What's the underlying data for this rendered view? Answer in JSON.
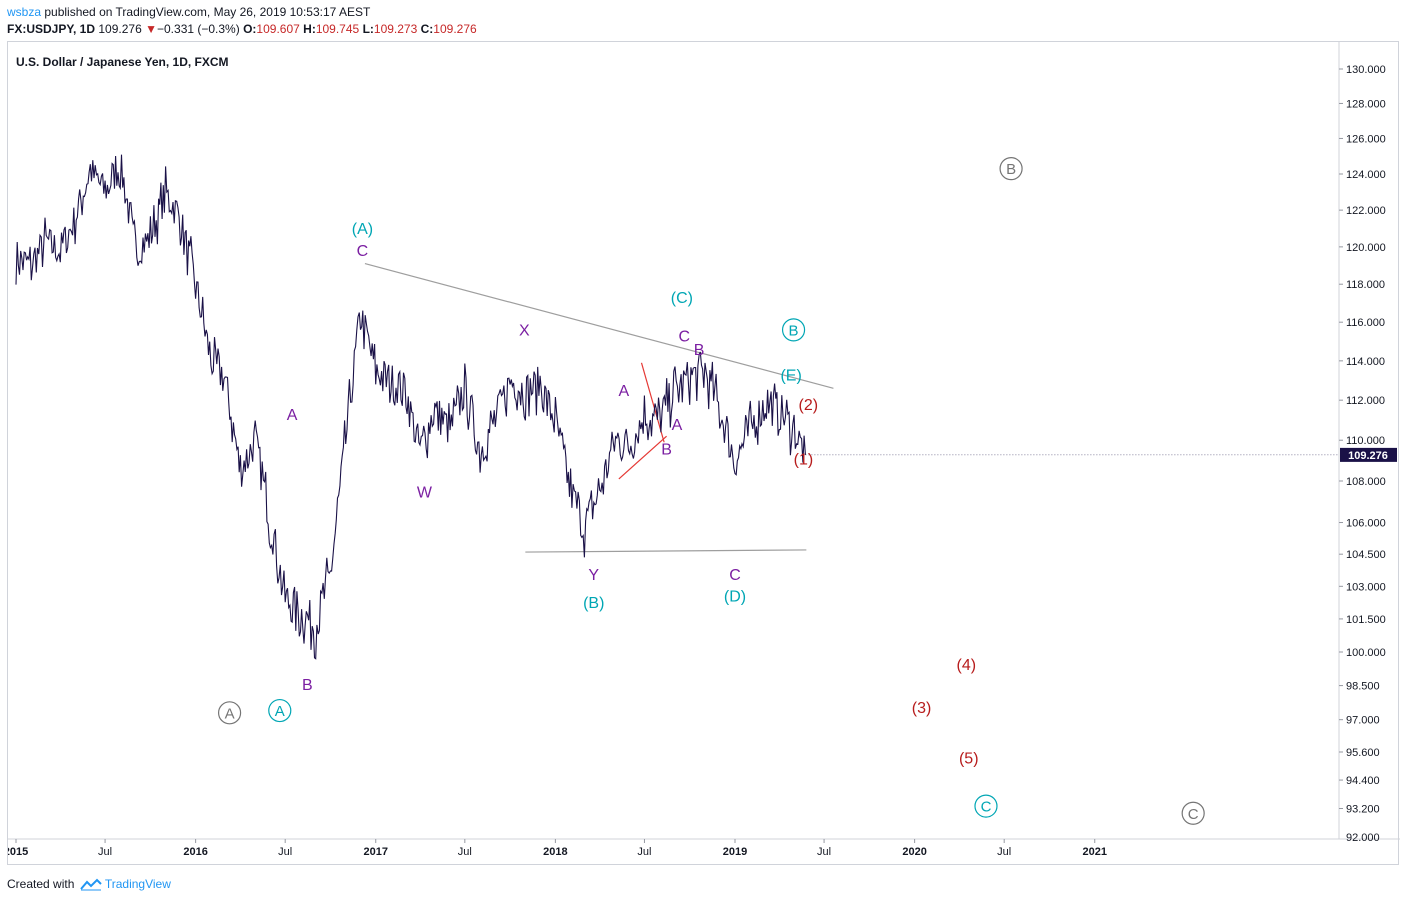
{
  "header": {
    "publisher": "wsbza",
    "published_text": "published on TradingView.com, May 26, 2019 10:53:17 AEST",
    "symbol": "FX:USDJPY, 1D",
    "last": "109.276",
    "change": "−0.331 (−0.3%)",
    "o_label": "O:",
    "o_value": "109.607",
    "h_label": "H:",
    "h_value": "109.745",
    "l_label": "L:",
    "l_value": "109.273",
    "c_label": "C:",
    "c_value": "109.276"
  },
  "footer": {
    "created_with": "Created with",
    "brand": "TradingView"
  },
  "chart_data": {
    "type": "line",
    "title": "U.S. Dollar / Japanese Yen, 1D, FXCM",
    "x_ticks": [
      "2015",
      "Jul",
      "2016",
      "Jul",
      "2017",
      "Jul",
      "2018",
      "Jul",
      "2019",
      "Jul",
      "2020",
      "Jul",
      "2021"
    ],
    "y_ticks": [
      "130.000",
      "128.000",
      "126.000",
      "124.000",
      "122.000",
      "120.000",
      "118.000",
      "116.000",
      "114.000",
      "112.000",
      "110.000",
      "108.000",
      "106.000",
      "104.500",
      "103.000",
      "101.500",
      "100.000",
      "98.500",
      "97.000",
      "95.600",
      "94.400",
      "93.200",
      "92.000"
    ],
    "last_price_label": "109.276",
    "colors": {
      "price": "#1a1147",
      "purple": "#7b1fa2",
      "teal": "#00a6b4",
      "red": "#b71c1c",
      "gray": "#757575",
      "redline": "#e53935",
      "trendline": "#9e9e9e"
    },
    "series": [
      {
        "x": [
          "2015-01-01",
          "2015-02-01",
          "2015-03-01",
          "2015-04-01",
          "2015-05-01",
          "2015-06-01",
          "2015-07-01",
          "2015-08-01",
          "2015-09-01",
          "2015-10-01",
          "2015-11-01",
          "2015-12-01",
          "2016-01-01",
          "2016-02-01",
          "2016-03-01",
          "2016-04-01",
          "2016-05-01",
          "2016-06-01",
          "2016-07-01",
          "2016-08-01",
          "2016-09-01",
          "2016-10-01",
          "2016-11-01",
          "2016-12-01",
          "2017-01-01",
          "2017-02-01",
          "2017-03-01",
          "2017-04-01",
          "2017-05-01",
          "2017-06-01",
          "2017-07-01",
          "2017-08-01",
          "2017-09-01",
          "2017-10-01",
          "2017-11-01",
          "2017-12-01",
          "2018-01-01",
          "2018-02-01",
          "2018-03-01",
          "2018-04-01",
          "2018-05-01",
          "2018-06-01",
          "2018-07-01",
          "2018-08-01",
          "2018-09-01",
          "2018-10-01",
          "2018-11-01",
          "2018-12-01",
          "2019-01-01",
          "2019-02-01",
          "2019-03-01",
          "2019-04-01",
          "2019-05-01",
          "2019-05-24"
        ],
        "y": [
          119.5,
          119.0,
          120.3,
          119.8,
          121.5,
          124.2,
          123.0,
          124.5,
          119.8,
          120.5,
          123.0,
          121.5,
          118.0,
          114.0,
          113.0,
          108.5,
          110.0,
          106.0,
          102.5,
          101.8,
          101.2,
          103.5,
          110.0,
          116.5,
          113.5,
          113.0,
          112.5,
          109.5,
          111.5,
          110.5,
          112.5,
          109.5,
          111.0,
          113.0,
          112.5,
          112.8,
          111.0,
          107.5,
          105.8,
          107.5,
          110.0,
          109.8,
          111.2,
          111.0,
          112.5,
          113.2,
          113.5,
          111.5,
          109.0,
          110.5,
          111.8,
          111.5,
          110.5,
          109.276
        ]
      }
    ],
    "trendlines": [
      {
        "x1": "2016-12-10",
        "y1": 119.1,
        "x2": "2019-07-20",
        "y2": 112.6
      },
      {
        "x1": "2017-11-01",
        "y1": 104.6,
        "x2": "2019-05-26",
        "y2": 104.7
      }
    ],
    "red_lines": [
      {
        "x1": "2018-05-10",
        "y1": 108.1,
        "x2": "2018-08-15",
        "y2": 110.2
      },
      {
        "x1": "2018-06-25",
        "y1": 113.9,
        "x2": "2018-08-10",
        "y2": 109.9
      }
    ],
    "labels": [
      {
        "text": "(A)",
        "x": "2016-12-05",
        "y": 120.7,
        "color": "teal"
      },
      {
        "text": "C",
        "x": "2016-12-05",
        "y": 119.5,
        "color": "purple"
      },
      {
        "text": "A",
        "x": "2016-07-15",
        "y": 111.0,
        "color": "purple"
      },
      {
        "text": "B",
        "x": "2016-08-15",
        "y": 98.3,
        "color": "purple"
      },
      {
        "text": "W",
        "x": "2017-04-10",
        "y": 107.2,
        "color": "purple"
      },
      {
        "text": "X",
        "x": "2017-10-30",
        "y": 115.3,
        "color": "purple"
      },
      {
        "text": "Y",
        "x": "2018-03-20",
        "y": 103.3,
        "color": "purple"
      },
      {
        "text": "(B)",
        "x": "2018-03-20",
        "y": 102.0,
        "color": "teal"
      },
      {
        "text": "A",
        "x": "2018-05-20",
        "y": 112.2,
        "color": "purple"
      },
      {
        "text": "(C)",
        "x": "2018-09-15",
        "y": 117.0,
        "color": "teal"
      },
      {
        "text": "C",
        "x": "2018-09-20",
        "y": 115.0,
        "color": "purple"
      },
      {
        "text": "B",
        "x": "2018-10-20",
        "y": 114.3,
        "color": "purple"
      },
      {
        "text": "A",
        "x": "2018-09-05",
        "y": 110.5,
        "color": "purple"
      },
      {
        "text": "B",
        "x": "2018-08-15",
        "y": 109.3,
        "color": "purple"
      },
      {
        "text": "C",
        "x": "2019-01-01",
        "y": 103.3,
        "color": "purple"
      },
      {
        "text": "(D)",
        "x": "2019-01-01",
        "y": 102.3,
        "color": "teal"
      },
      {
        "text": "(E)",
        "x": "2019-04-25",
        "y": 113.0,
        "color": "teal"
      },
      {
        "text": "(2)",
        "x": "2019-05-30",
        "y": 111.5,
        "color": "red"
      },
      {
        "text": "(1)",
        "x": "2019-05-20",
        "y": 108.8,
        "color": "red"
      },
      {
        "text": "(4)",
        "x": "2020-04-15",
        "y": 99.2,
        "color": "red"
      },
      {
        "text": "(3)",
        "x": "2020-01-15",
        "y": 97.3,
        "color": "red"
      },
      {
        "text": "(5)",
        "x": "2020-04-20",
        "y": 95.1,
        "color": "red"
      }
    ],
    "circled_labels": [
      {
        "text": "B",
        "x": "2019-04-30",
        "y": 115.6,
        "color": "teal"
      },
      {
        "text": "A",
        "x": "2016-06-20",
        "y": 97.4,
        "color": "teal"
      },
      {
        "text": "A",
        "x": "2016-03-10",
        "y": 97.3,
        "color": "gray"
      },
      {
        "text": "B",
        "x": "2020-07-15",
        "y": 124.3,
        "color": "gray"
      },
      {
        "text": "C",
        "x": "2020-05-25",
        "y": 93.3,
        "color": "teal"
      },
      {
        "text": "C",
        "x": "2021-07-20",
        "y": 93.0,
        "color": "gray"
      }
    ]
  }
}
